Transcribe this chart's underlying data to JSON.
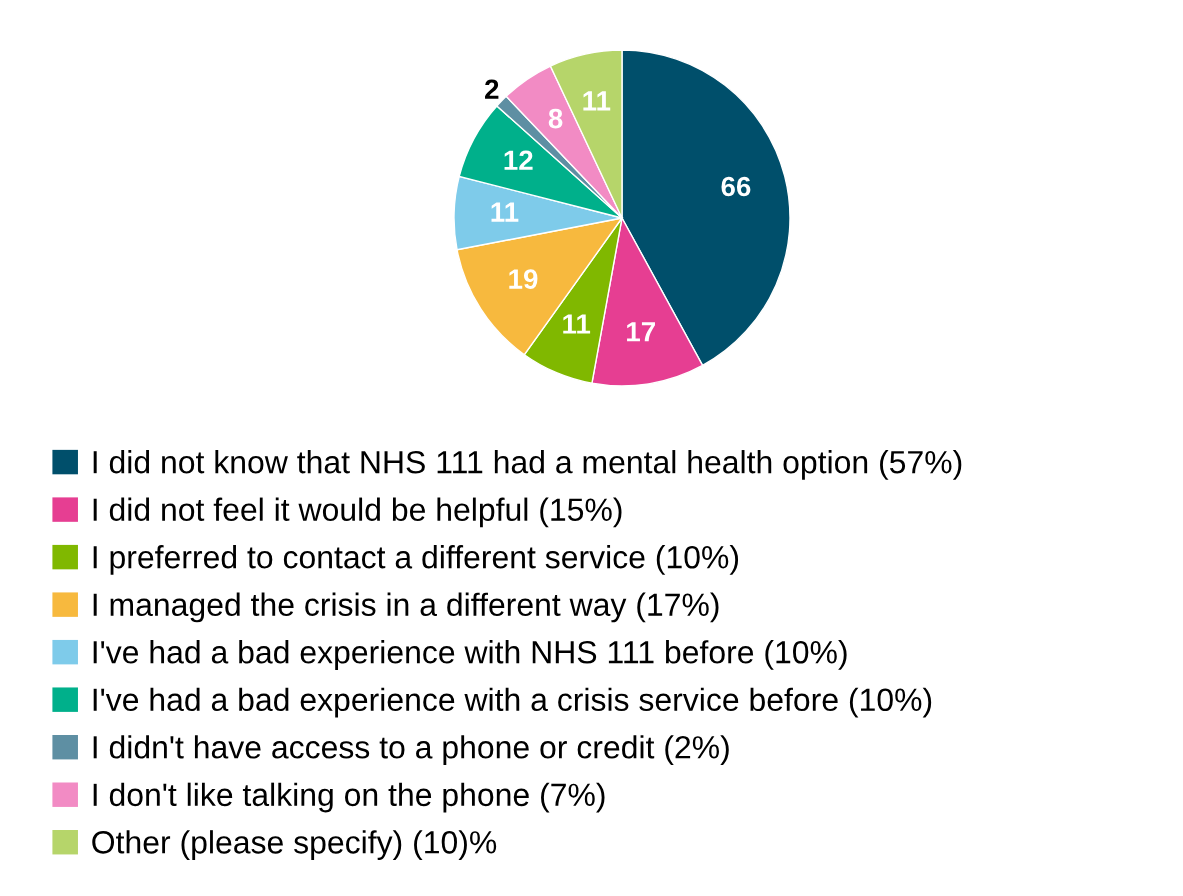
{
  "chart_data": {
    "type": "pie",
    "categories": [
      "I did not know that NHS 111 had a mental health option (57%)",
      "I did not feel it would be helpful (15%)",
      "I preferred to contact a different service (10%)",
      "I managed the crisis in a different way (17%)",
      "I've had a bad experience with NHS 111 before (10%)",
      "I've had a bad experience with a crisis service before (10%)",
      "I didn't have access to a phone or credit (2%)",
      "I don't like talking on the phone (7%)",
      "Other (please specify) (10)%"
    ],
    "values": [
      66,
      17,
      11,
      19,
      11,
      12,
      2,
      8,
      11
    ],
    "colors": [
      "#004f6b",
      "#e63e92",
      "#80b800",
      "#f7b93e",
      "#7ecbea",
      "#00b08b",
      "#5e8fa3",
      "#f28bc4",
      "#b6d56a"
    ],
    "data_labels": true,
    "legend": "bottom"
  }
}
